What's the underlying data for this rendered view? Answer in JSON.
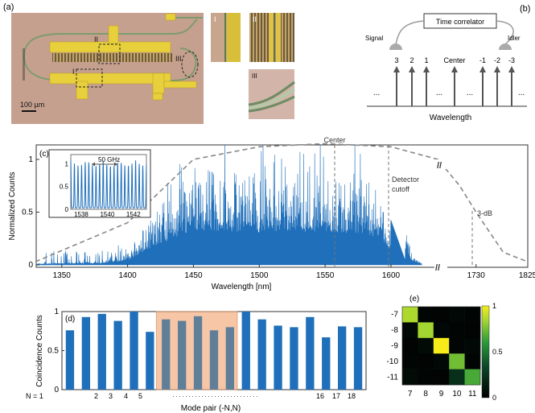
{
  "panel_a": {
    "label": "(a)",
    "scale_bar": "100 µm",
    "callouts": [
      "I",
      "II",
      "III"
    ],
    "inset_labels": [
      "I",
      "II",
      "III"
    ]
  },
  "panel_b": {
    "label": "(b)",
    "correlator": "Time correlator",
    "signal": "Signal",
    "idler": "Idler",
    "center": "Center",
    "signal_modes": [
      "3",
      "2",
      "1"
    ],
    "idler_modes": [
      "-1",
      "-2",
      "-3"
    ],
    "dots": "...",
    "xlabel": "Wavelength"
  },
  "colors": {
    "spectrum": "#1f6fba",
    "bars": "#1f6fba",
    "highlight": "#f4b38a",
    "heat_high": "#f0e81a",
    "heat_low": "#050505"
  },
  "chart_data": [
    {
      "id": "c",
      "label": "(c)",
      "type": "line",
      "title": "",
      "xlabel": "Wavelength [nm]",
      "ylabel": "Normalized Counts",
      "xticks": [
        "1350",
        "1400",
        "1450",
        "1500",
        "1550",
        "1600",
        "1730",
        "1825"
      ],
      "yticks": [
        "0",
        "0.5",
        "1"
      ],
      "ylim": [
        0,
        1.3
      ],
      "annotations": {
        "center": "Center",
        "detector_line1": "Detector",
        "detector_line2": "cutoff",
        "three_db": "3-dB",
        "axis_break": "//"
      },
      "filter_curve": {
        "x": [
          1330,
          1400,
          1450,
          1500,
          1550,
          1600,
          1660,
          1700,
          1730,
          1780,
          1825
        ],
        "y": [
          0.03,
          0.4,
          1.0,
          1.12,
          1.15,
          1.12,
          1.0,
          0.75,
          0.5,
          0.12,
          0.03
        ]
      },
      "spectrum_envelope": {
        "x": [
          1330,
          1380,
          1400,
          1420,
          1450,
          1480,
          1500,
          1520,
          1550,
          1570,
          1590,
          1600,
          1610,
          1630
        ],
        "y": [
          0.01,
          0.04,
          0.12,
          0.5,
          0.95,
          0.9,
          0.88,
          0.9,
          0.9,
          0.85,
          0.75,
          0.4,
          0.08,
          0.02
        ]
      },
      "inset": {
        "xticks": [
          "1538",
          "1540",
          "1542"
        ],
        "yticks": [
          "0",
          "0.5",
          "1"
        ],
        "annotation": "50 GHz",
        "x": [
          1537.2,
          1543.0
        ],
        "ylim": [
          0,
          1.2
        ],
        "peaks": 21
      }
    },
    {
      "id": "d",
      "label": "(d)",
      "type": "bar",
      "ylabel": "Coincidence Counts",
      "xlabel": "Mode pair (-N,N)",
      "ylim": [
        0,
        1
      ],
      "yticks": [
        "0",
        "0.5",
        "1"
      ],
      "tick_labels": [
        "N = 1",
        "2",
        "3",
        "4",
        "5",
        "16",
        "17",
        "18"
      ],
      "tick_dots": "···························",
      "values": [
        0.76,
        0.93,
        0.97,
        0.88,
        1.0,
        0.74,
        0.9,
        0.88,
        0.94,
        0.76,
        0.8,
        1.0,
        0.9,
        0.82,
        0.8,
        0.93,
        0.67,
        0.81,
        0.8
      ],
      "highlighted_range": [
        6,
        10
      ]
    },
    {
      "id": "e",
      "label": "(e)",
      "type": "heatmap",
      "xticks": [
        "7",
        "8",
        "9",
        "10",
        "11"
      ],
      "yticks": [
        "-7",
        "-8",
        "-9",
        "-10",
        "-11"
      ],
      "colorbar_ticks": [
        "0",
        "0.5",
        "1"
      ],
      "matrix": [
        [
          0.86,
          0.03,
          0.02,
          0.04,
          0.03
        ],
        [
          0.04,
          0.84,
          0.04,
          0.03,
          0.02
        ],
        [
          0.02,
          0.05,
          1.0,
          0.03,
          0.04
        ],
        [
          0.03,
          0.02,
          0.04,
          0.74,
          0.03
        ],
        [
          0.05,
          0.03,
          0.02,
          0.22,
          0.66
        ]
      ]
    }
  ]
}
